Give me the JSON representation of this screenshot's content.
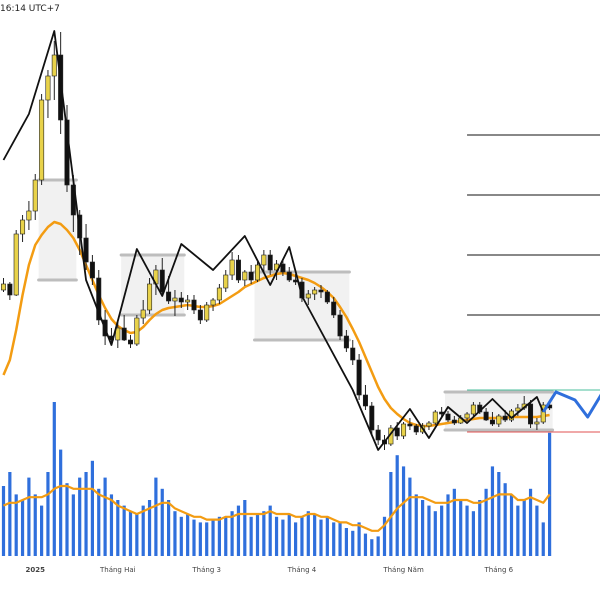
{
  "header": {
    "timestamp": "16:14 UTC+7"
  },
  "chart_data": {
    "type": "candlestick",
    "candles": [
      [
        49.0,
        50.2,
        48.8,
        49.6
      ],
      [
        49.6,
        49.8,
        48.0,
        48.5
      ],
      [
        48.5,
        55.0,
        48.4,
        54.6
      ],
      [
        54.6,
        56.5,
        53.8,
        56.0
      ],
      [
        56.0,
        57.9,
        55.0,
        56.9
      ],
      [
        56.9,
        60.6,
        56.0,
        60.0
      ],
      [
        60.0,
        68.6,
        59.5,
        68.0
      ],
      [
        68.0,
        71.0,
        66.2,
        70.4
      ],
      [
        70.4,
        73.9,
        68.0,
        72.5
      ],
      [
        72.5,
        74.8,
        64.6,
        66.0
      ],
      [
        66.0,
        67.5,
        58.8,
        59.5
      ],
      [
        59.5,
        60.5,
        54.8,
        56.5
      ],
      [
        56.5,
        57.0,
        52.5,
        54.2
      ],
      [
        54.2,
        55.6,
        51.0,
        51.8
      ],
      [
        51.8,
        52.5,
        49.5,
        50.2
      ],
      [
        50.2,
        51.0,
        45.5,
        46.0
      ],
      [
        46.0,
        47.0,
        43.5,
        44.4
      ],
      [
        44.4,
        45.2,
        43.5,
        44.0
      ],
      [
        44.0,
        45.8,
        43.2,
        45.2
      ],
      [
        45.2,
        46.5,
        43.9,
        44.0
      ],
      [
        44.0,
        44.5,
        43.2,
        43.6
      ],
      [
        43.6,
        46.5,
        43.4,
        46.2
      ],
      [
        46.2,
        48.0,
        45.6,
        47.0
      ],
      [
        47.0,
        50.2,
        46.6,
        49.6
      ],
      [
        49.6,
        51.5,
        48.5,
        51.0
      ],
      [
        51.0,
        52.2,
        48.4,
        48.8
      ],
      [
        48.8,
        50.4,
        47.6,
        47.9
      ],
      [
        47.9,
        49.0,
        46.4,
        48.2
      ],
      [
        48.2,
        48.8,
        47.2,
        47.8
      ],
      [
        47.8,
        48.5,
        47.0,
        48.0
      ],
      [
        48.0,
        48.5,
        46.6,
        47.0
      ],
      [
        47.0,
        47.5,
        45.6,
        46.0
      ],
      [
        46.0,
        47.8,
        45.8,
        47.5
      ],
      [
        47.5,
        48.2,
        46.9,
        48.0
      ],
      [
        48.0,
        49.6,
        47.6,
        49.2
      ],
      [
        49.2,
        51.0,
        48.8,
        50.5
      ],
      [
        50.5,
        52.8,
        50.0,
        52.0
      ],
      [
        52.0,
        52.5,
        49.7,
        50.0
      ],
      [
        50.0,
        51.0,
        49.4,
        50.8
      ],
      [
        50.8,
        51.5,
        49.6,
        50.0
      ],
      [
        50.0,
        51.8,
        49.8,
        51.5
      ],
      [
        51.5,
        53.0,
        50.8,
        52.5
      ],
      [
        52.5,
        53.0,
        50.5,
        51.0
      ],
      [
        51.0,
        52.0,
        50.0,
        51.6
      ],
      [
        51.6,
        52.0,
        50.4,
        50.8
      ],
      [
        50.8,
        51.3,
        49.8,
        50.0
      ],
      [
        50.0,
        50.6,
        49.5,
        49.8
      ],
      [
        49.8,
        50.2,
        47.8,
        48.2
      ],
      [
        48.2,
        49.0,
        47.5,
        48.6
      ],
      [
        48.6,
        49.3,
        48.0,
        49.0
      ],
      [
        49.0,
        49.5,
        48.2,
        48.8
      ],
      [
        48.8,
        49.0,
        47.6,
        47.8
      ],
      [
        47.8,
        48.3,
        46.2,
        46.5
      ],
      [
        46.5,
        47.0,
        44.0,
        44.4
      ],
      [
        44.4,
        45.0,
        42.8,
        43.2
      ],
      [
        43.2,
        44.0,
        41.5,
        42.0
      ],
      [
        42.0,
        42.6,
        38.0,
        38.5
      ],
      [
        38.5,
        39.5,
        37.0,
        37.4
      ],
      [
        37.4,
        37.8,
        34.5,
        35.0
      ],
      [
        35.0,
        35.5,
        33.5,
        34.0
      ],
      [
        34.0,
        34.5,
        33.0,
        33.6
      ],
      [
        33.6,
        35.5,
        33.4,
        35.2
      ],
      [
        35.2,
        35.8,
        34.0,
        34.4
      ],
      [
        34.4,
        35.8,
        34.1,
        35.6
      ],
      [
        35.6,
        36.2,
        35.0,
        35.4
      ],
      [
        35.4,
        35.6,
        34.5,
        34.8
      ],
      [
        34.8,
        35.7,
        34.6,
        35.4
      ],
      [
        35.4,
        35.9,
        35.0,
        35.7
      ],
      [
        35.7,
        37.0,
        35.5,
        36.8
      ],
      [
        36.8,
        37.3,
        36.2,
        36.6
      ],
      [
        36.6,
        36.9,
        35.8,
        36.0
      ],
      [
        36.0,
        36.4,
        35.5,
        35.7
      ],
      [
        35.7,
        36.5,
        35.6,
        36.2
      ],
      [
        36.2,
        36.8,
        35.9,
        36.6
      ],
      [
        36.6,
        37.8,
        36.4,
        37.5
      ],
      [
        37.5,
        37.8,
        36.6,
        36.8
      ],
      [
        36.8,
        37.2,
        35.9,
        36.0
      ],
      [
        36.0,
        36.8,
        35.4,
        35.6
      ],
      [
        35.6,
        36.6,
        35.3,
        36.4
      ],
      [
        36.4,
        37.0,
        35.8,
        36.0
      ],
      [
        36.0,
        37.1,
        35.8,
        36.9
      ],
      [
        36.9,
        37.6,
        36.4,
        37.2
      ],
      [
        37.2,
        38.4,
        37.0,
        37.6
      ],
      [
        37.6,
        38.0,
        35.2,
        35.6
      ],
      [
        35.6,
        36.2,
        35.0,
        35.8
      ],
      [
        35.8,
        37.8,
        35.6,
        37.5
      ],
      [
        37.5,
        38.0,
        37.0,
        37.2
      ]
    ],
    "volumes": [
      25,
      30,
      22,
      20,
      28,
      22,
      18,
      30,
      55,
      38,
      26,
      22,
      28,
      30,
      34,
      24,
      28,
      22,
      20,
      18,
      16,
      15,
      18,
      20,
      28,
      24,
      20,
      16,
      14,
      15,
      13,
      12,
      12,
      13,
      14,
      14,
      16,
      18,
      20,
      14,
      15,
      16,
      18,
      14,
      13,
      15,
      12,
      14,
      16,
      15,
      13,
      14,
      12,
      12,
      10,
      9,
      12,
      8,
      6,
      7,
      14,
      30,
      36,
      32,
      28,
      22,
      20,
      18,
      16,
      18,
      22,
      24,
      20,
      18,
      16,
      20,
      24,
      32,
      30,
      26,
      22,
      18,
      20,
      24,
      18,
      12,
      44
    ],
    "volume_ma": [
      18,
      19,
      19,
      20,
      21,
      21,
      21,
      22,
      24,
      25,
      25,
      24,
      24,
      24,
      24,
      22,
      21,
      20,
      18,
      17,
      16,
      15,
      16,
      17,
      18,
      19,
      19,
      17,
      16,
      15,
      14,
      14,
      13,
      13,
      13,
      14,
      14,
      15,
      15,
      15,
      15,
      15,
      16,
      15,
      15,
      15,
      14,
      14,
      15,
      15,
      14,
      14,
      13,
      12,
      12,
      11,
      11,
      10,
      9,
      9,
      11,
      14,
      17,
      19,
      21,
      21,
      21,
      20,
      19,
      19,
      19,
      20,
      20,
      20,
      19,
      19,
      20,
      21,
      22,
      22,
      22,
      20,
      20,
      21,
      20,
      19,
      22
    ],
    "ma_line": [
      40.5,
      42.0,
      45.0,
      48.5,
      51.5,
      53.5,
      54.5,
      55.3,
      55.8,
      55.6,
      55.0,
      54.2,
      53.0,
      51.5,
      50.0,
      48.5,
      47.2,
      46.1,
      45.4,
      45.0,
      44.7,
      44.8,
      45.3,
      46.0,
      46.6,
      47.0,
      47.2,
      47.3,
      47.4,
      47.5,
      47.4,
      47.3,
      47.3,
      47.4,
      47.6,
      48.0,
      48.4,
      48.8,
      49.3,
      49.6,
      49.9,
      50.2,
      50.4,
      50.6,
      50.7,
      50.6,
      50.4,
      50.2,
      50.0,
      49.7,
      49.3,
      48.8,
      48.2,
      47.3,
      46.3,
      45.1,
      43.8,
      42.3,
      40.8,
      39.3,
      38.1,
      37.2,
      36.6,
      36.1,
      35.7,
      35.5,
      35.4,
      35.4,
      35.5,
      35.6,
      35.7,
      35.8,
      35.9,
      36.0,
      36.1,
      36.2,
      36.2,
      36.2,
      36.2,
      36.2,
      36.3,
      36.3,
      36.3,
      36.3,
      36.3,
      36.4,
      36.5
    ],
    "zigzag_levels": [
      34.8,
      39.0,
      46.5,
      52.5,
      58.5,
      64.5
    ],
    "zigzag_pivots": [
      [
        0,
        62.0
      ],
      [
        4,
        66.6
      ],
      [
        8,
        74.9
      ],
      [
        13,
        50.0
      ],
      [
        17,
        43.5
      ],
      [
        21,
        53.1
      ],
      [
        25,
        48.4
      ],
      [
        28,
        53.6
      ],
      [
        33,
        51.0
      ],
      [
        38,
        54.4
      ],
      [
        42,
        49.5
      ],
      [
        45,
        53.3
      ],
      [
        47,
        48.4
      ],
      [
        55,
        39.0
      ],
      [
        59,
        33.0
      ],
      [
        64,
        37.1
      ],
      [
        67,
        34.2
      ],
      [
        70,
        37.3
      ],
      [
        73,
        35.7
      ],
      [
        77,
        38.1
      ],
      [
        80,
        36.2
      ],
      [
        84,
        38.3
      ],
      [
        85,
        36.8
      ]
    ],
    "projection": [
      [
        85,
        36.8
      ],
      [
        87,
        38.8
      ],
      [
        90,
        38.0
      ],
      [
        92,
        36.3
      ],
      [
        96,
        40.5
      ],
      [
        99,
        39.6
      ],
      [
        103,
        41.2
      ]
    ],
    "ranges": [
      {
        "start": 6,
        "end": 11,
        "top": 60.0,
        "bottom": 50.0
      },
      {
        "start": 19,
        "end": 28,
        "top": 52.5,
        "bottom": 46.5
      },
      {
        "start": 40,
        "end": 54,
        "top": 50.8,
        "bottom": 44.0
      },
      {
        "start": 70,
        "end": 86,
        "top": 38.8,
        "bottom": 35.0
      }
    ],
    "x_tick_labels": [
      {
        "index": 5,
        "label": "2025"
      },
      {
        "index": 18,
        "label": "Tháng Hai"
      },
      {
        "index": 32,
        "label": "Tháng 3"
      },
      {
        "index": 47,
        "label": "Tháng 4"
      },
      {
        "index": 63,
        "label": "Tháng Năm"
      },
      {
        "index": 78,
        "label": "Tháng 6"
      }
    ],
    "colors": {
      "bullish": "#e8d24a",
      "bearish": "#111111",
      "ma": "#f39c12",
      "volume": "#2f6fdc",
      "zigzag": "#111111",
      "projection": "#2f6fdc",
      "level": "#111111",
      "target_green": "#4bbf9c",
      "stop_red": "#e05050",
      "range_fill": "#e6e6e6",
      "range_edge": "#bdbdbd"
    },
    "grid": false,
    "legend": "none"
  }
}
